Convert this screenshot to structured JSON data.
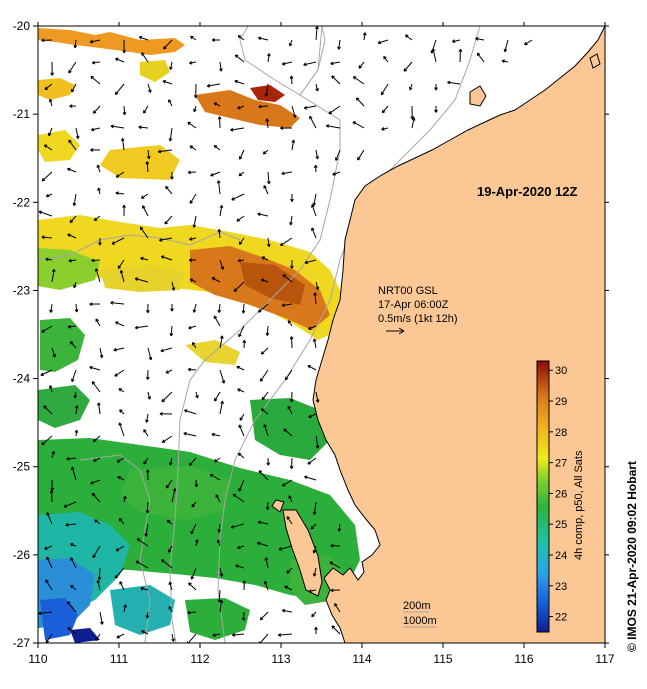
{
  "map": {
    "title": "19-Apr-2020 12Z",
    "lon_range": [
      110,
      117
    ],
    "lat_range": [
      -27,
      -20
    ],
    "x_ticks": [
      "110",
      "111",
      "112",
      "113",
      "114",
      "115",
      "116",
      "117"
    ],
    "y_ticks": [
      "-20",
      "-21",
      "-22",
      "-23",
      "-24",
      "-25",
      "-26",
      "-27"
    ],
    "current_info": {
      "line1": "NRT00 GSL",
      "line2": "17-Apr 06:00Z",
      "line3": "0.5m/s (1kt 12h)"
    },
    "isobath_labels": [
      "200m",
      "1000m"
    ],
    "credit": "© IMOS 21-Apr-2020 09:02 Hobart"
  },
  "colorbar": {
    "label": "4h comp, p50, All Sats",
    "min": 21.5,
    "max": 30.3,
    "ticks": [
      "22",
      "23",
      "24",
      "25",
      "26",
      "27",
      "28",
      "29",
      "30"
    ]
  },
  "colors": {
    "land": "#fbc794",
    "coast": "#000000",
    "isobath": "#a6a6a6",
    "background": "#ffffff"
  }
}
